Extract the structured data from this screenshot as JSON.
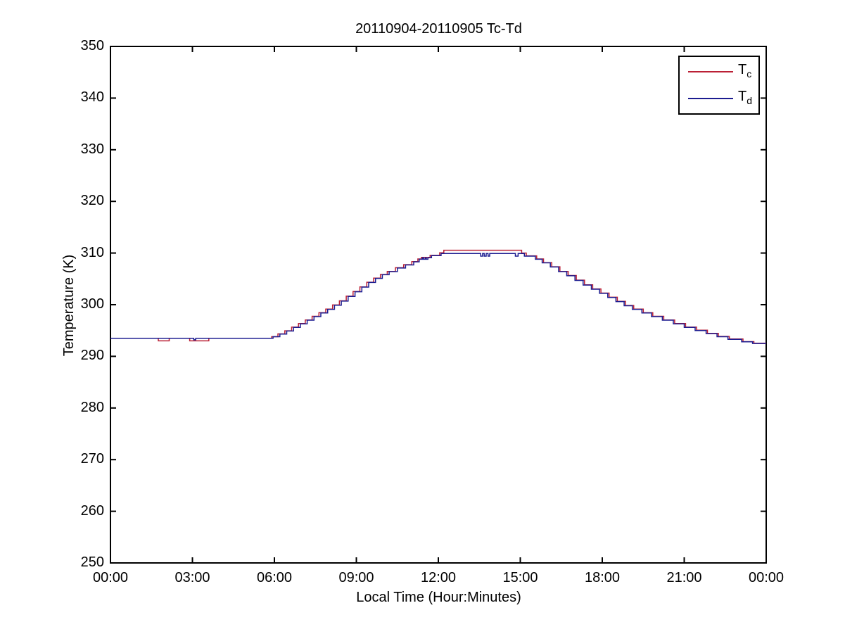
{
  "chart_data": {
    "type": "line",
    "interpolation": "step-after",
    "title": "20110904-20110905 Tc-Td",
    "xlabel": "Local Time (Hour:Minutes)",
    "ylabel": "Temperature (K)",
    "xlim_hours": [
      0,
      24
    ],
    "ylim": [
      250,
      350
    ],
    "grid": false,
    "background": "#ffffff",
    "axis_color": "#000000",
    "legend_position": "top-right",
    "x_ticks": [
      {
        "hour": 0,
        "label": "00:00"
      },
      {
        "hour": 3,
        "label": "03:00"
      },
      {
        "hour": 6,
        "label": "06:00"
      },
      {
        "hour": 9,
        "label": "09:00"
      },
      {
        "hour": 12,
        "label": "12:00"
      },
      {
        "hour": 15,
        "label": "15:00"
      },
      {
        "hour": 18,
        "label": "18:00"
      },
      {
        "hour": 21,
        "label": "21:00"
      },
      {
        "hour": 24,
        "label": "00:00"
      }
    ],
    "y_ticks": [
      250,
      260,
      270,
      280,
      290,
      300,
      310,
      320,
      330,
      340,
      350
    ],
    "series": [
      {
        "name": "Tc",
        "label_main": "T",
        "label_sub": "c",
        "color": "#bb2035",
        "points": [
          [
            0,
            293.5
          ],
          [
            1.75,
            293.0
          ],
          [
            2.15,
            293.5
          ],
          [
            2.9,
            293.0
          ],
          [
            3.6,
            293.5
          ],
          [
            5.9,
            293.8
          ],
          [
            6.13,
            294.35
          ],
          [
            6.38,
            294.95
          ],
          [
            6.63,
            295.65
          ],
          [
            6.88,
            296.35
          ],
          [
            7.13,
            297.05
          ],
          [
            7.38,
            297.75
          ],
          [
            7.63,
            298.45
          ],
          [
            7.88,
            299.15
          ],
          [
            8.13,
            299.95
          ],
          [
            8.38,
            300.75
          ],
          [
            8.63,
            301.65
          ],
          [
            8.88,
            302.55
          ],
          [
            9.13,
            303.45
          ],
          [
            9.38,
            304.35
          ],
          [
            9.63,
            305.15
          ],
          [
            9.88,
            305.85
          ],
          [
            10.13,
            306.45
          ],
          [
            10.43,
            307.15
          ],
          [
            10.73,
            307.75
          ],
          [
            11.03,
            308.35
          ],
          [
            11.25,
            308.85
          ],
          [
            11.38,
            309.15
          ],
          [
            11.7,
            309.55
          ],
          [
            12.05,
            310.05
          ],
          [
            12.2,
            310.55
          ],
          [
            15.05,
            310.0
          ],
          [
            15.22,
            309.45
          ],
          [
            15.6,
            308.85
          ],
          [
            15.85,
            308.15
          ],
          [
            16.15,
            307.35
          ],
          [
            16.45,
            306.45
          ],
          [
            16.75,
            305.65
          ],
          [
            17.05,
            304.75
          ],
          [
            17.35,
            303.85
          ],
          [
            17.65,
            303.05
          ],
          [
            17.95,
            302.25
          ],
          [
            18.25,
            301.45
          ],
          [
            18.55,
            300.65
          ],
          [
            18.85,
            299.85
          ],
          [
            19.15,
            299.15
          ],
          [
            19.5,
            298.45
          ],
          [
            19.85,
            297.75
          ],
          [
            20.25,
            297.05
          ],
          [
            20.65,
            296.35
          ],
          [
            21.05,
            295.65
          ],
          [
            21.45,
            295.05
          ],
          [
            21.85,
            294.45
          ],
          [
            22.25,
            293.85
          ],
          [
            22.65,
            293.35
          ],
          [
            23.15,
            292.85
          ],
          [
            23.55,
            292.55
          ],
          [
            24,
            292.55
          ]
        ]
      },
      {
        "name": "Td",
        "label_main": "T",
        "label_sub": "d",
        "color": "#1c1c90",
        "points": [
          [
            0,
            293.5
          ],
          [
            3.05,
            293.2
          ],
          [
            3.12,
            293.5
          ],
          [
            5.95,
            293.8
          ],
          [
            6.2,
            294.3
          ],
          [
            6.45,
            294.9
          ],
          [
            6.7,
            295.6
          ],
          [
            6.95,
            296.3
          ],
          [
            7.2,
            297.0
          ],
          [
            7.45,
            297.7
          ],
          [
            7.7,
            298.4
          ],
          [
            7.95,
            299.1
          ],
          [
            8.2,
            299.9
          ],
          [
            8.45,
            300.7
          ],
          [
            8.7,
            301.6
          ],
          [
            8.95,
            302.5
          ],
          [
            9.2,
            303.4
          ],
          [
            9.45,
            304.3
          ],
          [
            9.7,
            305.1
          ],
          [
            9.95,
            305.8
          ],
          [
            10.2,
            306.4
          ],
          [
            10.5,
            307.1
          ],
          [
            10.8,
            307.7
          ],
          [
            11.1,
            308.3
          ],
          [
            11.3,
            308.8
          ],
          [
            11.42,
            309.1
          ],
          [
            11.46,
            308.8
          ],
          [
            11.52,
            309.1
          ],
          [
            11.56,
            308.8
          ],
          [
            11.62,
            309.1
          ],
          [
            11.75,
            309.5
          ],
          [
            12.1,
            309.9
          ],
          [
            13.55,
            309.4
          ],
          [
            13.62,
            309.9
          ],
          [
            13.68,
            309.4
          ],
          [
            13.75,
            309.9
          ],
          [
            13.82,
            309.4
          ],
          [
            13.88,
            309.9
          ],
          [
            14.82,
            309.4
          ],
          [
            14.92,
            309.9
          ],
          [
            15.15,
            309.4
          ],
          [
            15.55,
            308.8
          ],
          [
            15.8,
            308.1
          ],
          [
            16.1,
            307.3
          ],
          [
            16.4,
            306.4
          ],
          [
            16.7,
            305.6
          ],
          [
            17.0,
            304.7
          ],
          [
            17.3,
            303.8
          ],
          [
            17.6,
            303.0
          ],
          [
            17.9,
            302.2
          ],
          [
            18.2,
            301.4
          ],
          [
            18.5,
            300.6
          ],
          [
            18.8,
            299.8
          ],
          [
            19.1,
            299.1
          ],
          [
            19.45,
            298.4
          ],
          [
            19.8,
            297.7
          ],
          [
            20.2,
            297.0
          ],
          [
            20.6,
            296.3
          ],
          [
            21.0,
            295.6
          ],
          [
            21.4,
            295.0
          ],
          [
            21.8,
            294.4
          ],
          [
            22.2,
            293.8
          ],
          [
            22.6,
            293.3
          ],
          [
            23.1,
            292.8
          ],
          [
            23.5,
            292.5
          ],
          [
            24,
            292.5
          ]
        ]
      }
    ]
  }
}
